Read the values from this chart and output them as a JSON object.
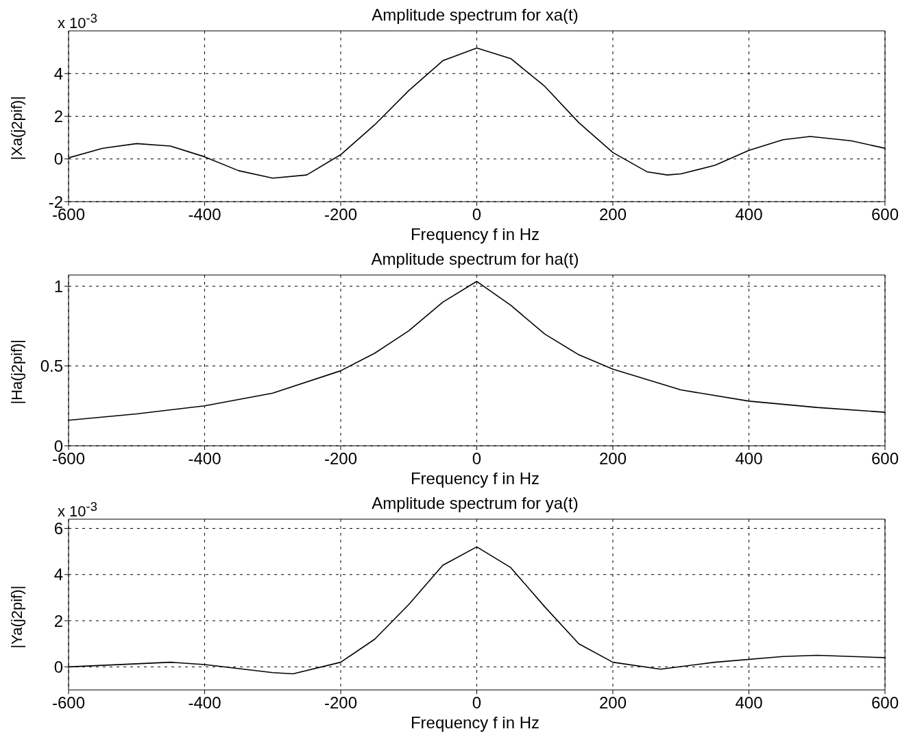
{
  "chart_data": [
    {
      "type": "line",
      "title": "Amplitude spectrum for xa(t)",
      "xlabel": "Frequency f in Hz",
      "ylabel": "|Xa(j2pif)|",
      "annotations": [
        "x 10$^{-3}$"
      ],
      "color": "#000000",
      "grid": true,
      "x": [
        -600,
        -550,
        -500,
        -450,
        -400,
        -350,
        -300,
        -250,
        -200,
        -150,
        -100,
        -50,
        0,
        50,
        100,
        150,
        200,
        250,
        280,
        300,
        350,
        400,
        450,
        490,
        550,
        600
      ],
      "values": [
        0.05,
        0.5,
        0.72,
        0.6,
        0.1,
        -0.55,
        -0.9,
        -0.75,
        0.2,
        1.6,
        3.2,
        4.6,
        5.2,
        4.7,
        3.4,
        1.7,
        0.3,
        -0.6,
        -0.75,
        -0.7,
        -0.3,
        0.4,
        0.9,
        1.05,
        0.85,
        0.5
      ],
      "xlim": [
        -600,
        600
      ],
      "xticks": [
        -600,
        -400,
        -200,
        0,
        200,
        400,
        600
      ],
      "ylim": [
        -2,
        6
      ],
      "yticks": [
        -2,
        0,
        2,
        4
      ]
    },
    {
      "type": "line",
      "title": "Amplitude spectrum for ha(t)",
      "xlabel": "Frequency f in Hz",
      "ylabel": "|Ha(j2pif)|",
      "color": "#000000",
      "grid": true,
      "x": [
        -600,
        -500,
        -400,
        -300,
        -200,
        -150,
        -100,
        -50,
        0,
        50,
        100,
        150,
        200,
        300,
        400,
        500,
        600
      ],
      "values": [
        0.16,
        0.2,
        0.25,
        0.33,
        0.47,
        0.58,
        0.72,
        0.9,
        1.03,
        0.88,
        0.7,
        0.57,
        0.48,
        0.35,
        0.28,
        0.24,
        0.21
      ],
      "xlim": [
        -600,
        600
      ],
      "xticks": [
        -600,
        -400,
        -200,
        0,
        200,
        400,
        600
      ],
      "ylim": [
        0,
        1.07
      ],
      "yticks": [
        0,
        0.5,
        1
      ]
    },
    {
      "type": "line",
      "title": "Amplitude spectrum for ya(t)",
      "xlabel": "Frequency f in Hz",
      "ylabel": "|Ya(j2pif)|",
      "annotations": [
        "x 10$^{-3}$"
      ],
      "color": "#000000",
      "grid": true,
      "x": [
        -600,
        -450,
        -400,
        -300,
        -270,
        -200,
        -150,
        -100,
        -50,
        0,
        50,
        100,
        150,
        200,
        270,
        350,
        450,
        500,
        600
      ],
      "values": [
        0,
        0.2,
        0.1,
        -0.25,
        -0.3,
        0.2,
        1.2,
        2.7,
        4.4,
        5.2,
        4.3,
        2.6,
        1.0,
        0.2,
        -0.1,
        0.2,
        0.45,
        0.5,
        0.4
      ],
      "xlim": [
        -600,
        600
      ],
      "xticks": [
        -600,
        -400,
        -200,
        0,
        200,
        400,
        600
      ],
      "ylim": [
        -1,
        6.4
      ],
      "yticks": [
        0,
        2,
        4,
        6
      ]
    }
  ]
}
